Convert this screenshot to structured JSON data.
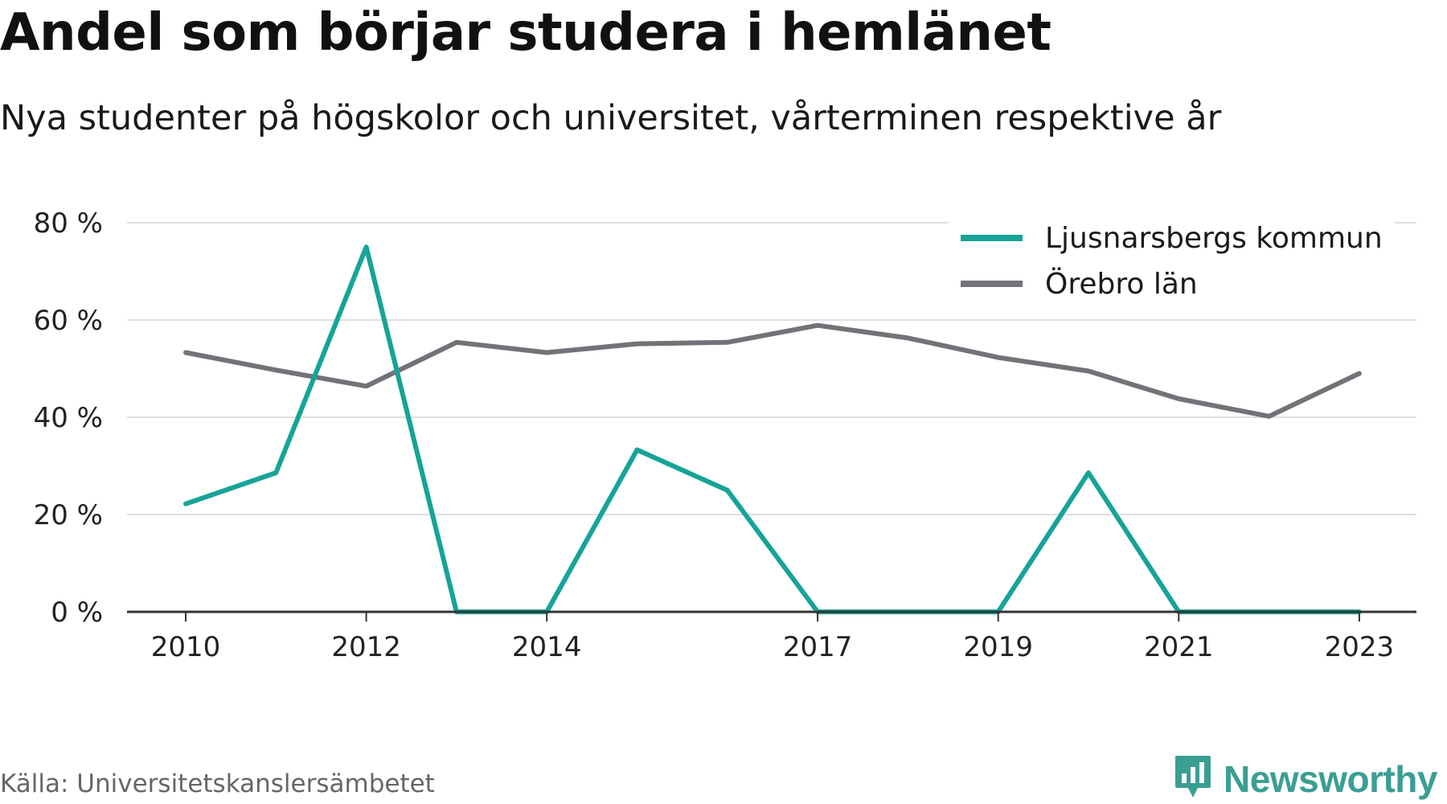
{
  "header": {
    "title": "Andel som börjar studera i hemlänet",
    "subtitle": "Nya studenter på högskolor och universitet, vårterminen respektive år"
  },
  "footer": {
    "source": "Källa: Universitetskanslersämbetet",
    "brand": "Newsworthy",
    "brand_icon": "newsworthy-logo-icon",
    "brand_color": "#3a9e93"
  },
  "chart_data": {
    "type": "line",
    "title": "Andel som börjar studera i hemlänet",
    "subtitle": "Nya studenter på högskolor och universitet, vårterminen respektive år",
    "xlabel": "",
    "ylabel": "",
    "x": [
      2010,
      2011,
      2012,
      2013,
      2014,
      2015,
      2016,
      2017,
      2018,
      2019,
      2020,
      2021,
      2022,
      2023
    ],
    "x_ticks": [
      "2010",
      "2012",
      "2014",
      "2017",
      "2019",
      "2021",
      "2023"
    ],
    "y_ticks": [
      "0 %",
      "20 %",
      "40 %",
      "60 %",
      "80 %"
    ],
    "ylim": [
      0,
      80
    ],
    "grid": true,
    "legend_position": "top-right",
    "series": [
      {
        "name": "Ljusnarsbergs kommun",
        "color": "#17a398",
        "values": [
          22.2,
          28.6,
          75.0,
          0,
          0,
          33.3,
          25.0,
          0,
          0,
          0,
          28.6,
          0,
          0,
          0
        ]
      },
      {
        "name": "Örebro län",
        "color": "#737278",
        "values": [
          53.3,
          49.7,
          46.4,
          55.4,
          53.3,
          55.1,
          55.4,
          58.9,
          56.3,
          52.3,
          49.5,
          43.8,
          40.2,
          49.0
        ]
      }
    ]
  }
}
